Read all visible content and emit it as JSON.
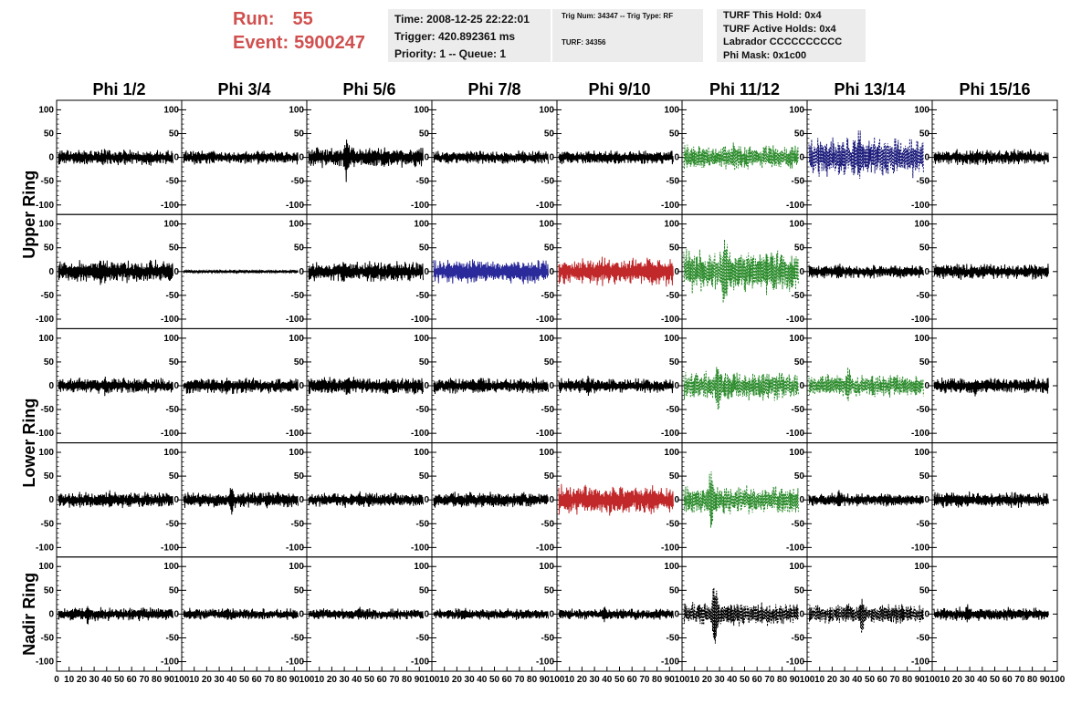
{
  "header": {
    "run_label": "Run:",
    "run_value": "55",
    "event_label": "Event:",
    "event_value": "5900247"
  },
  "info_panel_1": {
    "time": "Time: 2008-12-25 22:22:01",
    "trigger": "Trigger: 420.892361 ms",
    "priority": "Priority: 1 -- Queue: 1"
  },
  "info_panel_2": {
    "trig": "Trig Num: 34347 -- Trig Type: RF",
    "turf": "TURF: 34356"
  },
  "info_panel_3": {
    "hold": "TURF This Hold: 0x4",
    "active": "TURF Active Holds: 0x4",
    "labrador": "Labrador CCCCCCCCCC",
    "phimask": "Phi Mask: 0x1c00"
  },
  "chart_data": {
    "type": "line",
    "columns": [
      "Phi 1/2",
      "Phi 3/4",
      "Phi 5/6",
      "Phi 7/8",
      "Phi 9/10",
      "Phi 11/12",
      "Phi 13/14",
      "Phi 15/16"
    ],
    "rows": [
      "Upper Ring",
      "",
      "Lower Ring",
      "",
      "Nadir Ring"
    ],
    "ylim": [
      -120,
      120
    ],
    "yticks": [
      100,
      50,
      0,
      -50,
      -100
    ],
    "xlim": [
      0,
      100
    ],
    "xtick_labels": [
      "0",
      "10",
      "20",
      "30",
      "40",
      "50",
      "60",
      "70",
      "80",
      "90",
      "100"
    ],
    "trace_amplitude": [
      [
        14,
        12,
        18,
        12,
        12,
        22,
        35,
        14
      ],
      [
        20,
        3,
        18,
        22,
        26,
        38,
        12,
        14
      ],
      [
        14,
        14,
        16,
        14,
        13,
        26,
        20,
        14
      ],
      [
        14,
        14,
        13,
        14,
        26,
        26,
        12,
        14
      ],
      [
        12,
        10,
        10,
        10,
        10,
        22,
        18,
        12
      ]
    ],
    "trace_spike_amplitude": [
      [
        20,
        18,
        70,
        15,
        15,
        50,
        80,
        20
      ],
      [
        40,
        5,
        35,
        30,
        35,
        120,
        25,
        25
      ],
      [
        25,
        25,
        30,
        25,
        30,
        80,
        60,
        25
      ],
      [
        30,
        40,
        25,
        25,
        40,
        100,
        25,
        25
      ],
      [
        30,
        20,
        20,
        20,
        20,
        110,
        50,
        30
      ]
    ],
    "trace_colors": [
      [
        "#000000",
        "#000000",
        "#000000",
        "#000000",
        "#000000",
        "#2a8a2a",
        "#1a1a7a",
        "#000000"
      ],
      [
        "#000000",
        "#000000",
        "#000000",
        "#2a2a9a",
        "#c0282a",
        "#2a8a2a",
        "#000000",
        "#000000"
      ],
      [
        "#000000",
        "#000000",
        "#000000",
        "#000000",
        "#000000",
        "#2a8a2a",
        "#2a8a2a",
        "#000000"
      ],
      [
        "#000000",
        "#000000",
        "#000000",
        "#000000",
        "#c0282a",
        "#2a8a2a",
        "#000000",
        "#000000"
      ],
      [
        "#000000",
        "#000000",
        "#000000",
        "#000000",
        "#000000",
        "#000000",
        "#000000",
        "#000000"
      ]
    ],
    "trace_dashed": [
      [
        false,
        false,
        false,
        false,
        false,
        true,
        true,
        false
      ],
      [
        false,
        false,
        false,
        false,
        false,
        true,
        false,
        false
      ],
      [
        false,
        false,
        false,
        false,
        false,
        true,
        true,
        false
      ],
      [
        false,
        false,
        false,
        false,
        false,
        true,
        false,
        false
      ],
      [
        false,
        false,
        false,
        false,
        false,
        true,
        true,
        false
      ]
    ],
    "grid": false
  }
}
